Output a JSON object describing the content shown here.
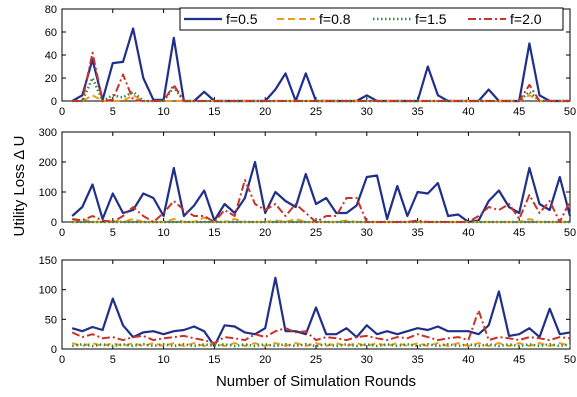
{
  "chart_data": [
    {
      "type": "line",
      "xlabel": "",
      "ylabel": "",
      "xlim": [
        0,
        50
      ],
      "ylim": [
        0,
        80
      ],
      "xticks": [
        0,
        5,
        10,
        15,
        20,
        25,
        30,
        35,
        40,
        45,
        50
      ],
      "yticks": [
        0,
        20,
        40,
        60,
        80
      ],
      "legend": {
        "placement": "top-right",
        "entries": [
          "f=0.5",
          "f=0.8",
          "f=1.5",
          "f=2.0"
        ]
      },
      "x": [
        1,
        2,
        3,
        4,
        5,
        6,
        7,
        8,
        9,
        10,
        11,
        12,
        13,
        14,
        15,
        16,
        17,
        18,
        19,
        20,
        21,
        22,
        23,
        24,
        25,
        26,
        27,
        28,
        29,
        30,
        31,
        32,
        33,
        34,
        35,
        36,
        37,
        38,
        39,
        40,
        41,
        42,
        43,
        44,
        45,
        46,
        47,
        48,
        49,
        50
      ],
      "series": [
        {
          "name": "f=0.5",
          "color": "#1f2f8a",
          "style": "solid",
          "values": [
            0,
            5,
            36,
            1,
            33,
            34,
            63,
            20,
            1,
            1,
            55,
            0,
            0,
            8,
            0,
            0,
            0,
            0,
            0,
            0,
            10,
            24,
            0,
            24,
            0,
            0,
            0,
            0,
            0,
            5,
            0,
            0,
            0,
            0,
            0,
            30,
            5,
            0,
            0,
            0,
            0,
            10,
            0,
            0,
            0,
            50,
            5,
            0,
            0,
            0
          ]
        },
        {
          "name": "f=0.8",
          "color": "#f09a1a",
          "style": "dashed",
          "values": [
            0,
            0,
            5,
            0,
            0,
            0,
            5,
            0,
            0,
            0,
            0,
            0,
            0,
            0,
            0,
            0,
            0,
            0,
            0,
            0,
            0,
            0,
            0,
            0,
            0,
            0,
            0,
            0,
            0,
            0,
            0,
            0,
            0,
            0,
            0,
            0,
            0,
            0,
            0,
            0,
            0,
            0,
            0,
            0,
            0,
            5,
            0,
            0,
            0,
            0
          ]
        },
        {
          "name": "f=1.5",
          "color": "#3a8a3a",
          "style": "dotted",
          "values": [
            0,
            0,
            20,
            0,
            5,
            3,
            8,
            0,
            0,
            0,
            12,
            0,
            0,
            0,
            0,
            0,
            0,
            0,
            0,
            0,
            0,
            0,
            0,
            0,
            0,
            0,
            0,
            0,
            0,
            0,
            0,
            0,
            0,
            0,
            0,
            0,
            0,
            0,
            0,
            0,
            0,
            0,
            0,
            0,
            0,
            8,
            0,
            0,
            0,
            0
          ]
        },
        {
          "name": "f=2.0",
          "color": "#c83228",
          "style": "dashdot",
          "values": [
            0,
            0,
            42,
            0,
            1,
            23,
            1,
            0,
            0,
            0,
            14,
            0,
            0,
            0,
            0,
            0,
            0,
            0,
            0,
            0,
            0,
            0,
            0,
            0,
            0,
            0,
            0,
            0,
            0,
            0,
            0,
            0,
            0,
            0,
            0,
            0,
            0,
            0,
            0,
            0,
            0,
            0,
            0,
            0,
            0,
            14,
            0,
            0,
            0,
            0
          ]
        }
      ]
    },
    {
      "type": "line",
      "xlabel": "",
      "ylabel": "Utility Loss Δ U",
      "xlim": [
        0,
        50
      ],
      "ylim": [
        0,
        300
      ],
      "xticks": [
        0,
        5,
        10,
        15,
        20,
        25,
        30,
        35,
        40,
        45,
        50
      ],
      "yticks": [
        0,
        100,
        200,
        300
      ],
      "x": [
        1,
        2,
        3,
        4,
        5,
        6,
        7,
        8,
        9,
        10,
        11,
        12,
        13,
        14,
        15,
        16,
        17,
        18,
        19,
        20,
        21,
        22,
        23,
        24,
        25,
        26,
        27,
        28,
        29,
        30,
        31,
        32,
        33,
        34,
        35,
        36,
        37,
        38,
        39,
        40,
        41,
        42,
        43,
        44,
        45,
        46,
        47,
        48,
        49,
        50
      ],
      "series": [
        {
          "name": "f=0.5",
          "color": "#1f2f8a",
          "style": "solid",
          "values": [
            20,
            50,
            125,
            10,
            95,
            30,
            40,
            95,
            80,
            20,
            180,
            20,
            55,
            105,
            5,
            60,
            30,
            80,
            200,
            30,
            100,
            70,
            50,
            160,
            60,
            80,
            30,
            30,
            55,
            150,
            155,
            10,
            120,
            20,
            100,
            95,
            130,
            20,
            25,
            0,
            5,
            70,
            105,
            50,
            30,
            180,
            60,
            40,
            150,
            20
          ]
        },
        {
          "name": "f=0.8",
          "color": "#f09a1a",
          "style": "dashed",
          "values": [
            0,
            10,
            0,
            0,
            5,
            0,
            10,
            0,
            0,
            0,
            10,
            0,
            0,
            15,
            0,
            0,
            10,
            0,
            0,
            0,
            5,
            0,
            10,
            0,
            0,
            0,
            0,
            5,
            0,
            0,
            0,
            0,
            0,
            0,
            0,
            0,
            0,
            0,
            0,
            0,
            0,
            0,
            0,
            0,
            0,
            10,
            0,
            0,
            0,
            0
          ]
        },
        {
          "name": "f=1.5",
          "color": "#3a8a3a",
          "style": "dotted",
          "values": [
            0,
            0,
            0,
            0,
            0,
            0,
            0,
            0,
            0,
            0,
            0,
            0,
            0,
            0,
            0,
            0,
            0,
            0,
            0,
            0,
            0,
            0,
            0,
            0,
            0,
            0,
            0,
            0,
            0,
            0,
            0,
            0,
            0,
            0,
            0,
            0,
            0,
            0,
            0,
            0,
            0,
            0,
            0,
            0,
            0,
            0,
            0,
            0,
            0,
            0
          ]
        },
        {
          "name": "f=2.0",
          "color": "#c83228",
          "style": "dashdot",
          "values": [
            10,
            5,
            20,
            5,
            0,
            20,
            50,
            20,
            0,
            30,
            70,
            40,
            20,
            20,
            0,
            40,
            20,
            140,
            60,
            40,
            60,
            20,
            60,
            30,
            0,
            20,
            20,
            80,
            80,
            0,
            0,
            0,
            0,
            0,
            5,
            0,
            0,
            0,
            0,
            0,
            20,
            50,
            40,
            60,
            10,
            90,
            30,
            70,
            0,
            70
          ]
        }
      ]
    },
    {
      "type": "line",
      "xlabel": "Number of Simulation Rounds",
      "ylabel": "",
      "xlim": [
        0,
        50
      ],
      "ylim": [
        0,
        150
      ],
      "xticks": [
        0,
        5,
        10,
        15,
        20,
        25,
        30,
        35,
        40,
        45,
        50
      ],
      "yticks": [
        0,
        50,
        100,
        150
      ],
      "x": [
        1,
        2,
        3,
        4,
        5,
        6,
        7,
        8,
        9,
        10,
        11,
        12,
        13,
        14,
        15,
        16,
        17,
        18,
        19,
        20,
        21,
        22,
        23,
        24,
        25,
        26,
        27,
        28,
        29,
        30,
        31,
        32,
        33,
        34,
        35,
        36,
        37,
        38,
        39,
        40,
        41,
        42,
        43,
        44,
        45,
        46,
        47,
        48,
        49,
        50
      ],
      "series": [
        {
          "name": "f=0.5",
          "color": "#1f2f8a",
          "style": "solid",
          "values": [
            35,
            30,
            37,
            32,
            85,
            40,
            20,
            28,
            30,
            25,
            30,
            32,
            38,
            30,
            5,
            40,
            38,
            28,
            25,
            35,
            120,
            30,
            30,
            25,
            70,
            25,
            25,
            35,
            20,
            40,
            25,
            30,
            25,
            30,
            35,
            32,
            38,
            30,
            30,
            30,
            25,
            40,
            97,
            22,
            25,
            35,
            20,
            68,
            25,
            28
          ]
        },
        {
          "name": "f=0.8",
          "color": "#f09a1a",
          "style": "dashed",
          "values": [
            10,
            5,
            10,
            5,
            10,
            5,
            10,
            5,
            10,
            5,
            10,
            5,
            10,
            5,
            10,
            5,
            10,
            5,
            10,
            5,
            10,
            5,
            10,
            5,
            10,
            5,
            10,
            5,
            10,
            5,
            10,
            5,
            10,
            5,
            10,
            5,
            10,
            5,
            10,
            5,
            10,
            5,
            10,
            5,
            10,
            5,
            10,
            5,
            10,
            5
          ]
        },
        {
          "name": "f=1.5",
          "color": "#3a8a3a",
          "style": "dotted",
          "values": [
            5,
            8,
            5,
            8,
            5,
            8,
            5,
            8,
            5,
            8,
            5,
            8,
            5,
            8,
            5,
            8,
            5,
            8,
            5,
            8,
            5,
            8,
            5,
            8,
            5,
            8,
            5,
            8,
            5,
            8,
            5,
            8,
            5,
            8,
            5,
            8,
            5,
            8,
            5,
            8,
            5,
            8,
            5,
            8,
            5,
            8,
            5,
            8,
            5,
            8
          ]
        },
        {
          "name": "f=2.0",
          "color": "#c83228",
          "style": "dashdot",
          "values": [
            28,
            20,
            25,
            18,
            20,
            15,
            20,
            22,
            15,
            18,
            20,
            22,
            18,
            15,
            10,
            20,
            18,
            15,
            25,
            20,
            30,
            35,
            28,
            30,
            15,
            20,
            18,
            15,
            20,
            22,
            18,
            15,
            20,
            18,
            25,
            20,
            15,
            18,
            20,
            15,
            65,
            15,
            20,
            18,
            15,
            20,
            18,
            15,
            20,
            18
          ]
        }
      ]
    }
  ]
}
